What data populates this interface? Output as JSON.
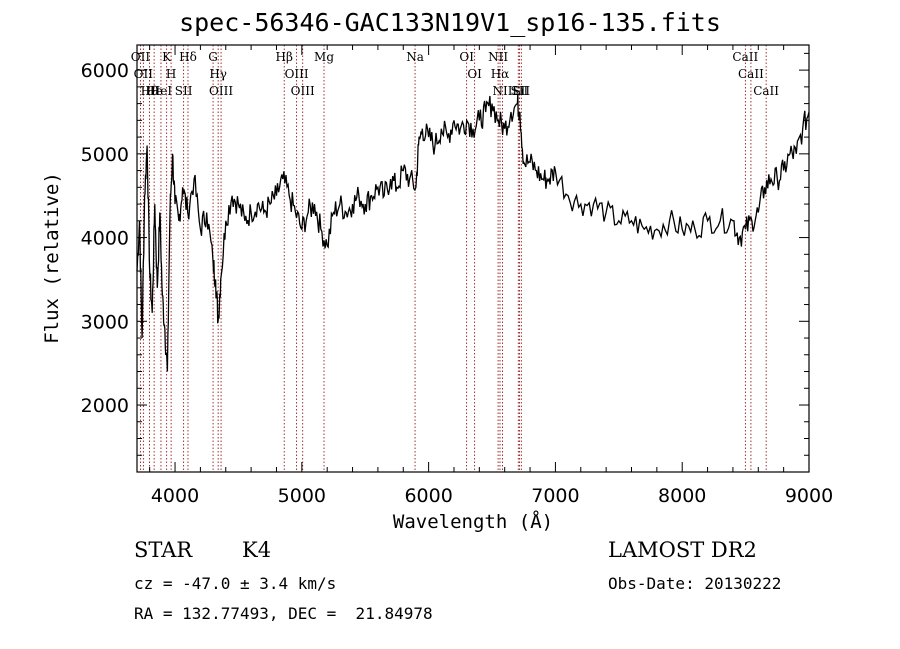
{
  "title": "spec-56346-GAC133N19V1_sp16-135.fits",
  "info": {
    "class": "STAR",
    "subclass": "K4",
    "cz": "cz = -47.0 ± 3.4 km/s",
    "radec": "RA = 132.77493, DEC =  21.84978",
    "survey": "LAMOST DR2",
    "obsdate": "Obs-Date: 20130222"
  },
  "chart_data": {
    "type": "line",
    "title": "spec-56346-GAC133N19V1_sp16-135.fits",
    "xlabel": "Wavelength (Å)",
    "ylabel": "Flux (relative)",
    "xlim": [
      3700,
      9000
    ],
    "ylim": [
      1200,
      6300
    ],
    "xticks": [
      4000,
      5000,
      6000,
      7000,
      8000,
      9000
    ],
    "yticks": [
      2000,
      3000,
      4000,
      5000,
      6000
    ],
    "colors": {
      "spectrum": "#000000",
      "lines": "#8b0000"
    },
    "series": [
      {
        "x": [
          3700,
          3720,
          3740,
          3760,
          3780,
          3800,
          3820,
          3840,
          3860,
          3880,
          3900,
          3920,
          3940,
          3960,
          3980,
          4000,
          4030,
          4060,
          4100,
          4150,
          4200,
          4250,
          4300,
          4320,
          4340,
          4360,
          4400,
          4450,
          4500,
          4550,
          4600,
          4650,
          4700,
          4750,
          4800,
          4850,
          4900,
          4950,
          5000,
          5050,
          5100,
          5150,
          5200,
          5250,
          5300,
          5350,
          5400,
          5450,
          5500,
          5550,
          5600,
          5650,
          5700,
          5750,
          5800,
          5850,
          5900,
          5920,
          5950,
          6000,
          6050,
          6100,
          6150,
          6200,
          6250,
          6300,
          6350,
          6400,
          6450,
          6500,
          6550,
          6600,
          6650,
          6700,
          6720,
          6750,
          6800,
          6850,
          6900,
          6950,
          7000,
          7100,
          7200,
          7300,
          7400,
          7500,
          7600,
          7700,
          7800,
          7900,
          8000,
          8100,
          8200,
          8300,
          8400,
          8450,
          8500,
          8550,
          8600,
          8650,
          8700,
          8750,
          8800,
          8850,
          8900,
          8950,
          9000
        ],
        "y": [
          3600,
          4200,
          2800,
          4500,
          5100,
          3600,
          3100,
          4400,
          3400,
          4300,
          3300,
          2900,
          2400,
          4300,
          5000,
          4400,
          4200,
          4600,
          4300,
          4700,
          4100,
          4300,
          3700,
          3500,
          3000,
          3500,
          4200,
          4500,
          4400,
          4200,
          4300,
          4400,
          4300,
          4400,
          4500,
          4700,
          4500,
          4300,
          4100,
          4300,
          4400,
          4100,
          3900,
          4300,
          4400,
          4300,
          4400,
          4500,
          4400,
          4500,
          4600,
          4500,
          4700,
          4600,
          4800,
          4700,
          4600,
          5100,
          5300,
          5200,
          5100,
          5300,
          5200,
          5400,
          5300,
          5400,
          5300,
          5400,
          5500,
          5600,
          5400,
          5300,
          5500,
          5600,
          5500,
          4900,
          4900,
          4800,
          4700,
          4700,
          4800,
          4500,
          4400,
          4400,
          4300,
          4200,
          4200,
          4100,
          4100,
          4200,
          4100,
          4100,
          4200,
          4200,
          4200,
          4000,
          4100,
          4200,
          4300,
          4600,
          4700,
          4700,
          4800,
          5000,
          5000,
          5300,
          5500
        ]
      }
    ],
    "lines": [
      {
        "w": 3727,
        "label": "OII"
      },
      {
        "w": 3750,
        "label": "OII"
      },
      {
        "w": 3798,
        "label": "Hθ"
      },
      {
        "w": 3835,
        "label": "He"
      },
      {
        "w": 3889,
        "label": "HeI"
      },
      {
        "w": 3934,
        "label": "K"
      },
      {
        "w": 3969,
        "label": "H"
      },
      {
        "w": 4068,
        "label": "SII"
      },
      {
        "w": 4102,
        "label": "Hδ"
      },
      {
        "w": 4300,
        "label": "G"
      },
      {
        "w": 4340,
        "label": "Hγ"
      },
      {
        "w": 4363,
        "label": "OIII"
      },
      {
        "w": 4861,
        "label": "Hβ"
      },
      {
        "w": 4959,
        "label": "OIII"
      },
      {
        "w": 5007,
        "label": "OIII"
      },
      {
        "w": 5175,
        "label": "Mg"
      },
      {
        "w": 5893,
        "label": "Na"
      },
      {
        "w": 6300,
        "label": "OI"
      },
      {
        "w": 6363,
        "label": "OI"
      },
      {
        "w": 6548,
        "label": "NII"
      },
      {
        "w": 6563,
        "label": "Hα"
      },
      {
        "w": 6583,
        "label": "NII"
      },
      {
        "w": 6707,
        "label": "Li"
      },
      {
        "w": 6716,
        "label": "SII"
      },
      {
        "w": 6731,
        "label": "SII"
      },
      {
        "w": 8498,
        "label": "CaII"
      },
      {
        "w": 8542,
        "label": "CaII"
      },
      {
        "w": 8662,
        "label": "CaII"
      }
    ]
  }
}
